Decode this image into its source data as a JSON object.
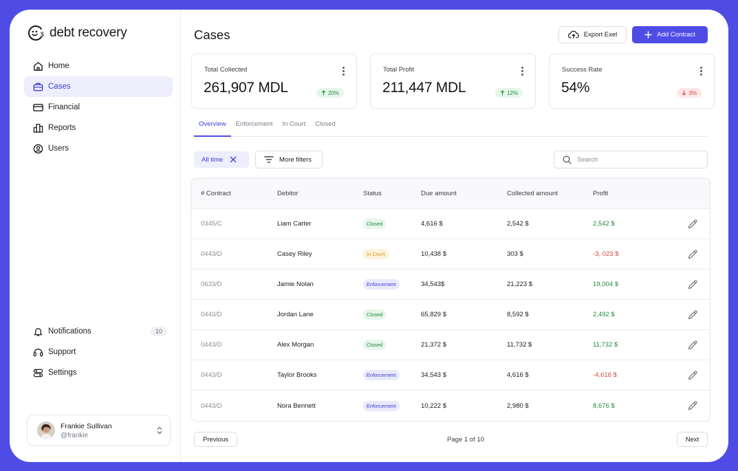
{
  "app": {
    "name": "debt recovery"
  },
  "sidebar": {
    "items": [
      {
        "label": "Home",
        "icon": "home-icon"
      },
      {
        "label": "Cases",
        "icon": "briefcase-icon",
        "active": true
      },
      {
        "label": "Financial",
        "icon": "card-icon"
      },
      {
        "label": "Reports",
        "icon": "bar-chart-icon"
      },
      {
        "label": "Users",
        "icon": "user-circle-icon"
      }
    ],
    "bottom_items": [
      {
        "label": "Notifications",
        "icon": "bell-icon",
        "badge": "10"
      },
      {
        "label": "Support",
        "icon": "support-icon"
      },
      {
        "label": "Settings",
        "icon": "toggles-icon"
      }
    ],
    "user": {
      "name": "Frankie Sullivan",
      "handle": "@frankie"
    }
  },
  "header": {
    "title": "Cases",
    "export_label": "Export Exel",
    "add_label": "Add Contract"
  },
  "kpis": [
    {
      "title": "Total Collected",
      "value": "261,907 MDL",
      "change": "20%",
      "trend": "up"
    },
    {
      "title": "Total Profit",
      "value": "211,447 MDL",
      "change": "12%",
      "trend": "up"
    },
    {
      "title": "Success Rate",
      "value": "54%",
      "change": "3%",
      "trend": "down"
    }
  ],
  "tabs": [
    "Overview",
    "Enforcement",
    "In Court",
    "Closed"
  ],
  "filters": {
    "chip_label": "All time",
    "more_label": "More filters",
    "search_placeholder": "Search"
  },
  "table": {
    "columns": [
      "# Contract",
      "Debitor",
      "Status",
      "Due amount",
      "Collected amount",
      "Profit"
    ],
    "rows": [
      {
        "contract": "0345/C",
        "debtor": "Liam Carter",
        "status": "Closed",
        "due": "4,616 $",
        "collected": "2,542 $",
        "profit": "2,542 $"
      },
      {
        "contract": "0443/D",
        "debtor": "Casey Riley",
        "status": "In Court",
        "due": "10,438 $",
        "collected": "303 $",
        "profit": "-3, 023 $"
      },
      {
        "contract": "0633/D",
        "debtor": "Jamie Nolan",
        "status": "Enforcement",
        "due": "34,543$",
        "collected": "21,223 $",
        "profit": "19,004 $"
      },
      {
        "contract": "0443/D",
        "debtor": "Jordan Lane",
        "status": "Closed",
        "due": "65,829 $",
        "collected": "8,592 $",
        "profit": "2,492 $"
      },
      {
        "contract": "0443/D",
        "debtor": "Alex Morgan",
        "status": "Closed",
        "due": "21,372 $",
        "collected": "11,732 $",
        "profit": "11,732 $"
      },
      {
        "contract": "0443/D",
        "debtor": "Taylor Brooks",
        "status": "Enforcement",
        "due": "34,543 $",
        "collected": "4,616 $",
        "profit": "-4,616 $"
      },
      {
        "contract": "0443/D",
        "debtor": "Nora Bennett",
        "status": "Enforcement",
        "due": "10,222 $",
        "collected": "2,980 $",
        "profit": "8,676 $"
      }
    ]
  },
  "pagination": {
    "prev_label": "Previous",
    "page_info": "Page 1 of 10",
    "next_label": "Next"
  },
  "colors": {
    "accent": "#4f4ce6",
    "positive": "#1f8a3f",
    "negative": "#d9453f",
    "warning": "#d19a1c"
  }
}
